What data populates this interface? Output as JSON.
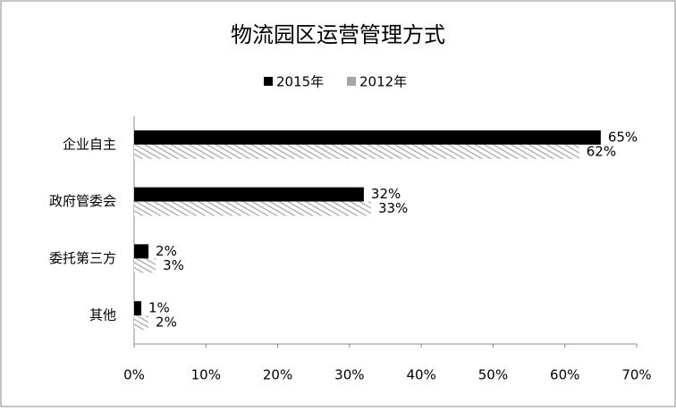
{
  "chart_data": {
    "type": "hbar",
    "title": "物流园区运营管理方式",
    "categories": [
      "企业自主",
      "政府管委会",
      "委托第三方",
      "其他"
    ],
    "series": [
      {
        "name": "2015年",
        "color": "#000000",
        "values": [
          65,
          32,
          2,
          1
        ],
        "value_labels": [
          "65%",
          "32%",
          "2%",
          "1%"
        ]
      },
      {
        "name": "2012年",
        "color": "#a6a6a6",
        "values": [
          62,
          33,
          3,
          2
        ],
        "value_labels": [
          "62%",
          "33%",
          "3%",
          "2%"
        ]
      }
    ],
    "xlim": [
      0,
      70
    ],
    "xticks": [
      {
        "value": 0,
        "label": "0%"
      },
      {
        "value": 10,
        "label": "10%"
      },
      {
        "value": 20,
        "label": "20%"
      },
      {
        "value": 30,
        "label": "30%"
      },
      {
        "value": 40,
        "label": "40%"
      },
      {
        "value": 50,
        "label": "50%"
      },
      {
        "value": 60,
        "label": "60%"
      },
      {
        "value": 70,
        "label": "70%"
      }
    ],
    "legend": "top"
  }
}
